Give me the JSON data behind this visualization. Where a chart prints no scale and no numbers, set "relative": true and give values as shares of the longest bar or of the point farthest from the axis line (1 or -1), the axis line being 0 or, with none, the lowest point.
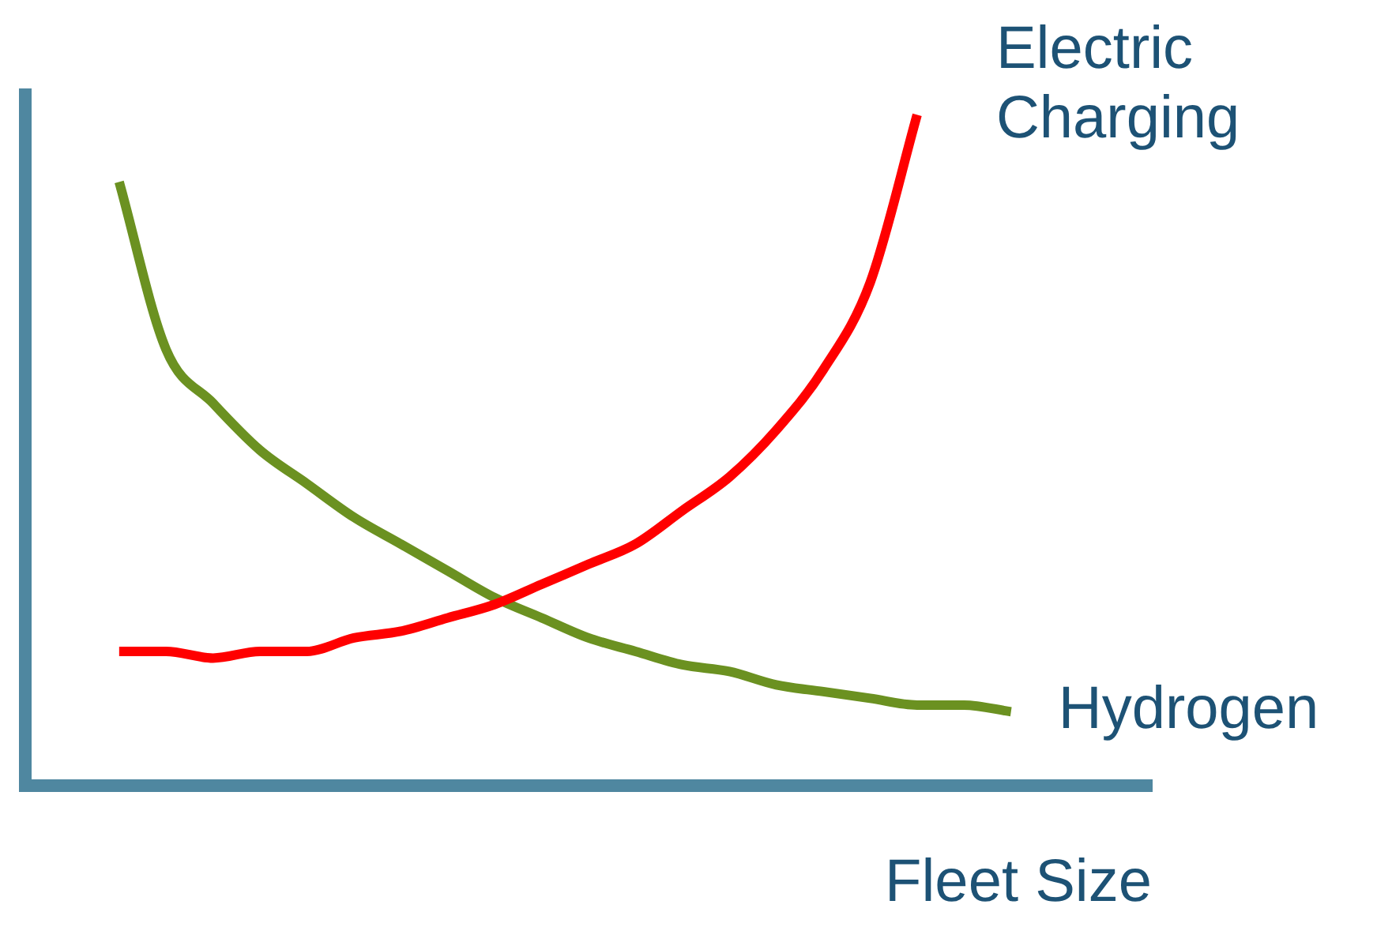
{
  "chart_data": {
    "type": "line",
    "relative": true,
    "xlabel": "Fleet Size",
    "legend": false,
    "marker": "none",
    "line_style": "solid",
    "categories": [
      null,
      null,
      null,
      null,
      null,
      null,
      null,
      null,
      null,
      null,
      null,
      null,
      null,
      null,
      null,
      null,
      null,
      null,
      null,
      null,
      null,
      null,
      null,
      null,
      null
    ],
    "series": [
      {
        "name": "Electric Charging",
        "color": "#ff0000",
        "values": [
          null,
          null,
          0.2,
          0.2,
          0.19,
          0.2,
          0.2,
          0.22,
          0.23,
          0.25,
          0.27,
          0.3,
          0.33,
          0.36,
          0.41,
          0.46,
          0.53,
          0.62,
          0.75,
          1.0,
          null,
          null,
          null,
          null,
          null
        ]
      },
      {
        "name": "Hydrogen",
        "color": "#6b9121",
        "values": [
          null,
          null,
          0.9,
          0.65,
          0.57,
          0.5,
          0.45,
          0.4,
          0.36,
          0.32,
          0.28,
          0.25,
          0.22,
          0.2,
          0.18,
          0.17,
          0.15,
          0.14,
          0.13,
          0.12,
          0.12,
          0.11,
          null,
          null,
          null
        ]
      }
    ]
  }
}
